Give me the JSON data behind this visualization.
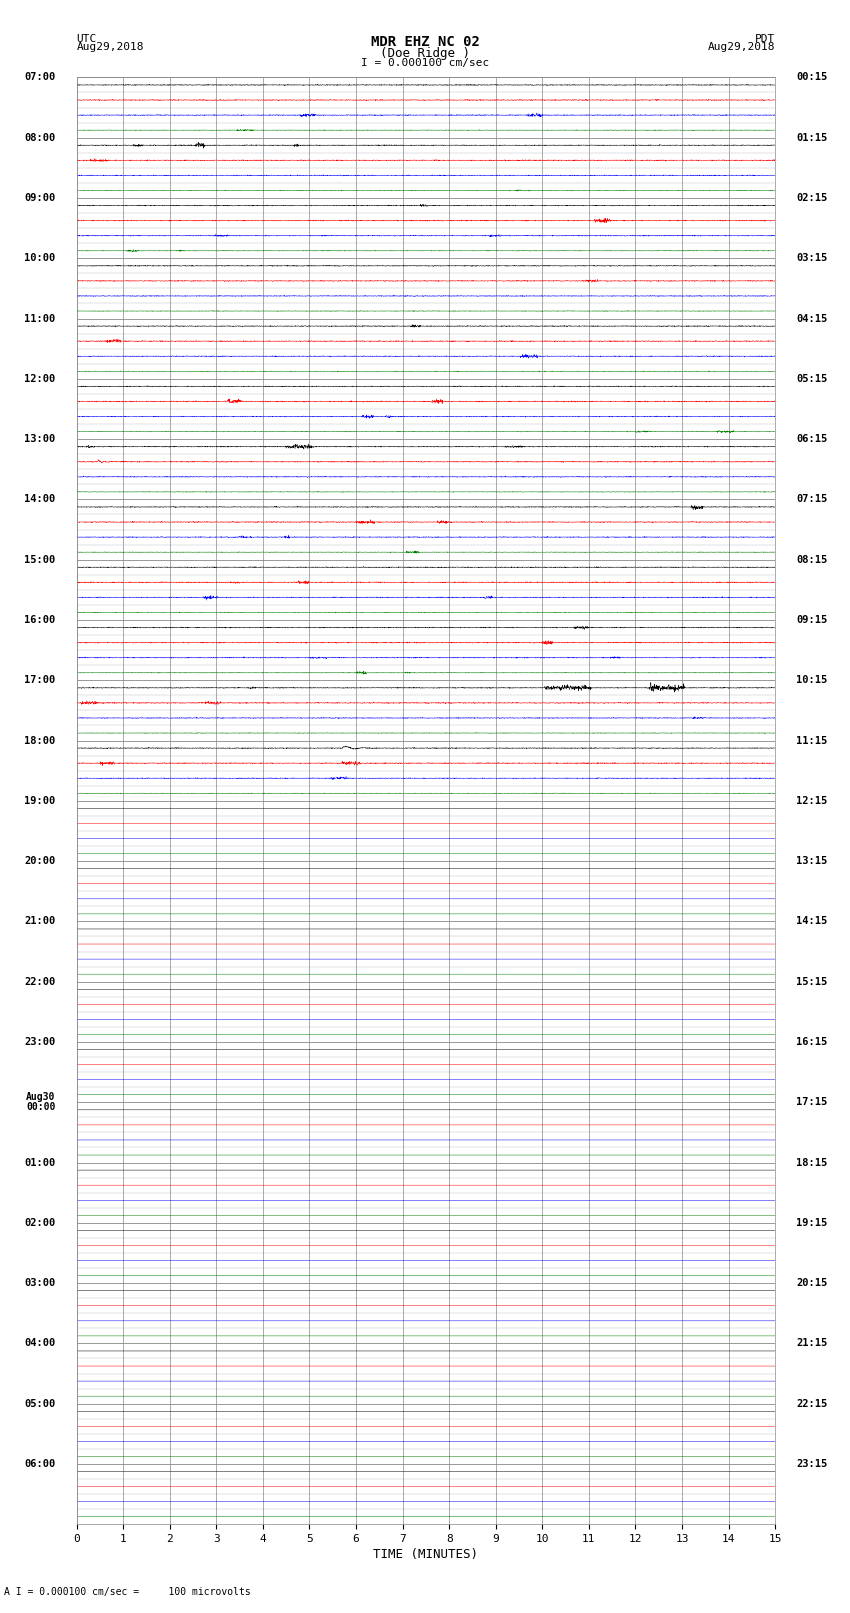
{
  "title_line1": "MDR EHZ NC 02",
  "title_line2": "(Doe Ridge )",
  "scale_label": "I = 0.000100 cm/sec",
  "utc_label": "UTC",
  "utc_date": "Aug29,2018",
  "pdt_label": "PDT",
  "pdt_date": "Aug29,2018",
  "footer_label": "A I = 0.000100 cm/sec =     100 microvolts",
  "xlabel": "TIME (MINUTES)",
  "left_times_utc": [
    "07:00",
    "08:00",
    "09:00",
    "10:00",
    "11:00",
    "12:00",
    "13:00",
    "14:00",
    "15:00",
    "16:00",
    "17:00",
    "18:00",
    "19:00",
    "20:00",
    "21:00",
    "22:00",
    "23:00",
    "Aug30\n00:00",
    "01:00",
    "02:00",
    "03:00",
    "04:00",
    "05:00",
    "06:00"
  ],
  "right_times_pdt": [
    "00:15",
    "01:15",
    "02:15",
    "03:15",
    "04:15",
    "05:15",
    "06:15",
    "07:15",
    "08:15",
    "09:15",
    "10:15",
    "11:15",
    "12:15",
    "13:15",
    "14:15",
    "15:15",
    "16:15",
    "17:15",
    "18:15",
    "19:15",
    "20:15",
    "21:15",
    "22:15",
    "23:15"
  ],
  "n_rows": 96,
  "colors": [
    "black",
    "red",
    "blue",
    "green"
  ],
  "bg_color": "white",
  "grid_color": "#888888",
  "minor_grid_color": "#bbbbbb",
  "noise_scale": 0.012,
  "active_rows": 48,
  "time_minutes_max": 15,
  "xticks": [
    0,
    1,
    2,
    3,
    4,
    5,
    6,
    7,
    8,
    9,
    10,
    11,
    12,
    13,
    14,
    15
  ]
}
